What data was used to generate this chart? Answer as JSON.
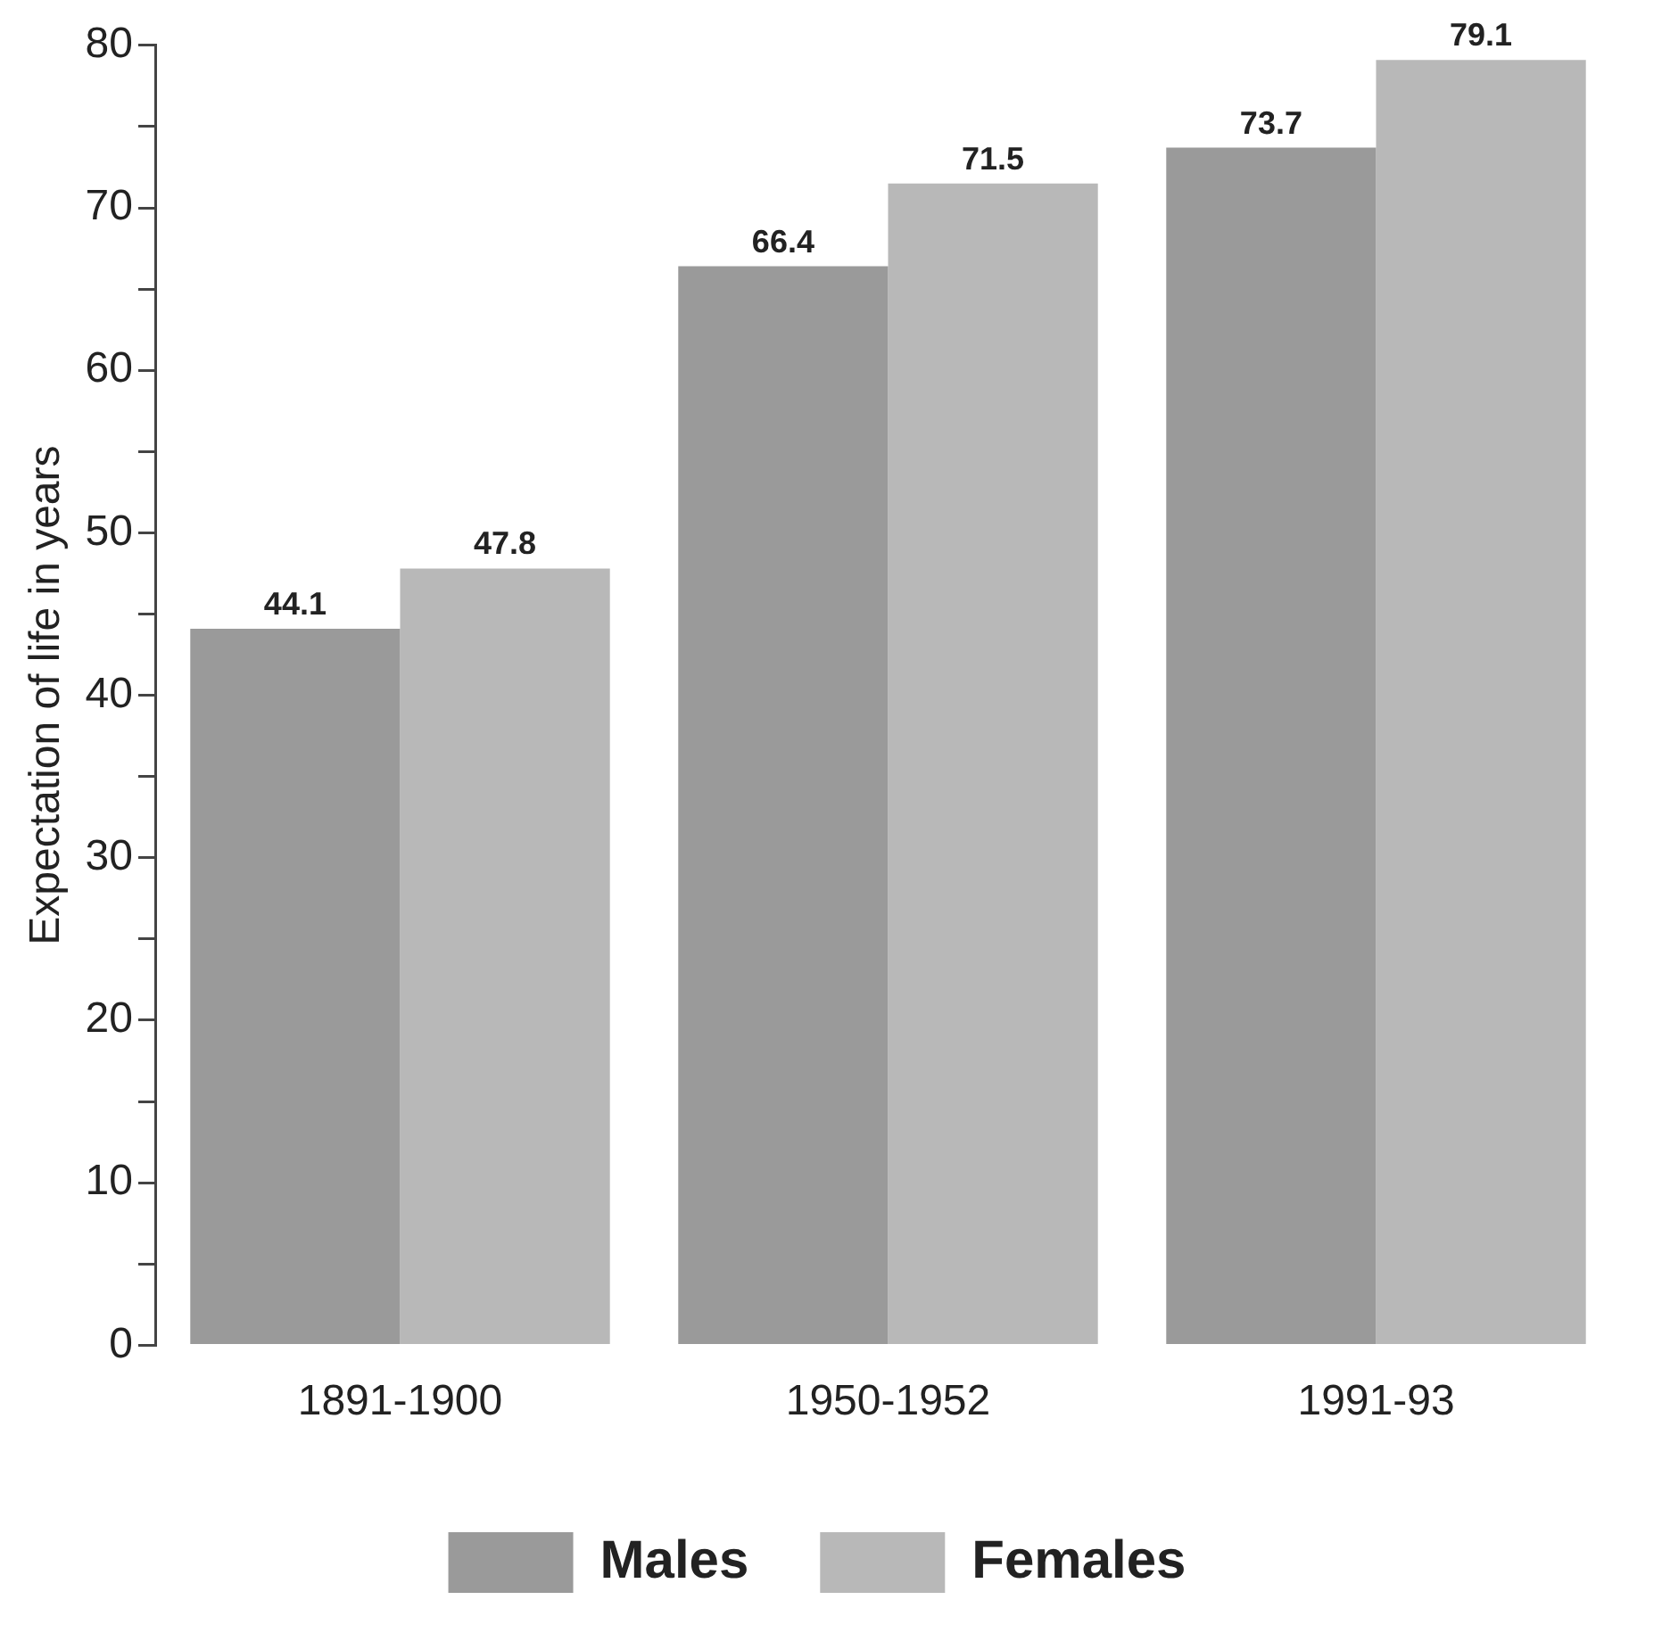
{
  "chart_data": {
    "type": "bar",
    "ylabel": "Expectation of life in years",
    "categories": [
      "1891-1900",
      "1950-1952",
      "1991-93"
    ],
    "series": [
      {
        "name": "Males",
        "color": "#9a9a9a",
        "values": [
          44.1,
          66.4,
          73.7
        ]
      },
      {
        "name": "Females",
        "color": "#b8b8b8",
        "values": [
          47.8,
          71.5,
          79.1
        ]
      }
    ],
    "ylim": [
      0,
      80
    ],
    "yticks": [
      0,
      {
        "value": 5,
        "label": null
      },
      10,
      {
        "value": 15,
        "label": null
      },
      20,
      {
        "value": 25,
        "label": null
      },
      30,
      {
        "value": 35,
        "label": null
      },
      40,
      {
        "value": 45,
        "label": null
      },
      50,
      {
        "value": 55,
        "label": null
      },
      60,
      {
        "value": 65,
        "label": null
      },
      70,
      {
        "value": 75,
        "label": null
      },
      80
    ],
    "grid": false,
    "legend": "bottom",
    "data_labels": true
  }
}
